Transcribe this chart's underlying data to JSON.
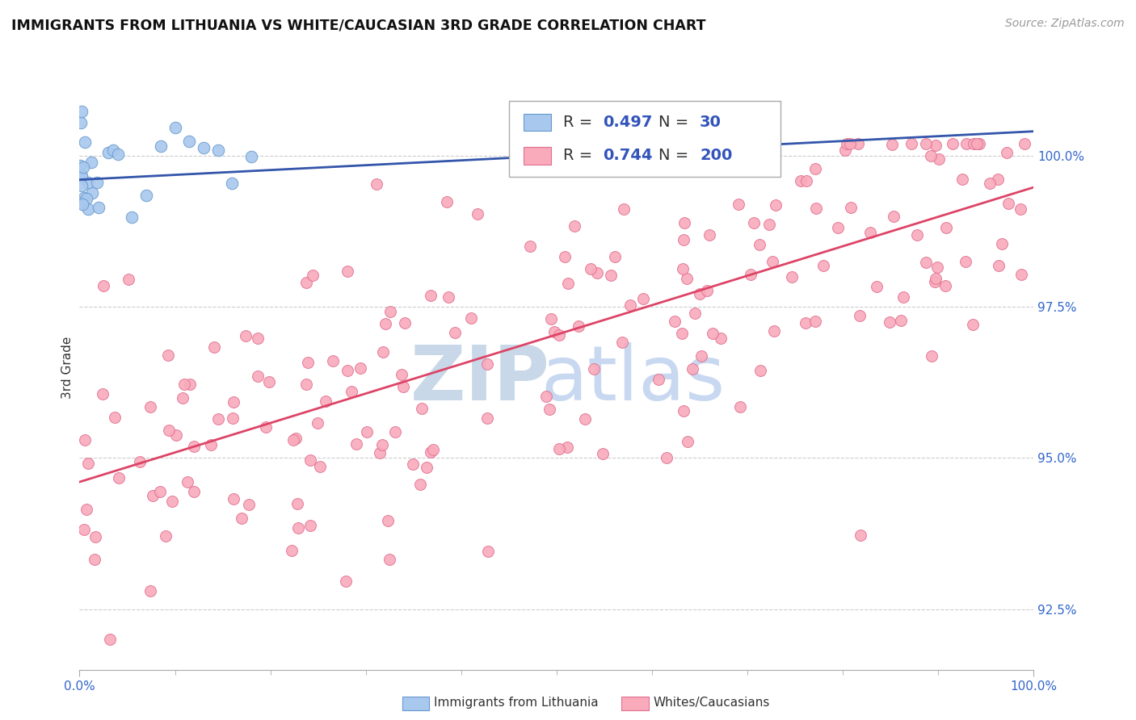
{
  "title": "IMMIGRANTS FROM LITHUANIA VS WHITE/CAUCASIAN 3RD GRADE CORRELATION CHART",
  "source": "Source: ZipAtlas.com",
  "ylabel": "3rd Grade",
  "xlim": [
    0.0,
    100.0
  ],
  "ylim": [
    91.5,
    101.5
  ],
  "ytick_positions": [
    92.5,
    95.0,
    97.5,
    100.0
  ],
  "legend_blue_r": "0.497",
  "legend_blue_n": "30",
  "legend_pink_r": "0.744",
  "legend_pink_n": "200",
  "blue_face_color": "#A8C8EE",
  "blue_edge_color": "#6699CC",
  "pink_face_color": "#F9AABB",
  "pink_edge_color": "#E07090",
  "blue_line_color": "#3355AA",
  "pink_line_color": "#DD4466",
  "background_color": "#FFFFFF",
  "grid_color": "#CCCCCC",
  "watermark_zip_color": "#C8D8E8",
  "watermark_atlas_color": "#C8D8F0",
  "title_color": "#111111",
  "source_color": "#999999",
  "ytick_color": "#3366CC",
  "xtick_color": "#3366CC",
  "ylabel_color": "#333333",
  "legend_text_color": "#333333",
  "legend_value_color": "#3355BB"
}
